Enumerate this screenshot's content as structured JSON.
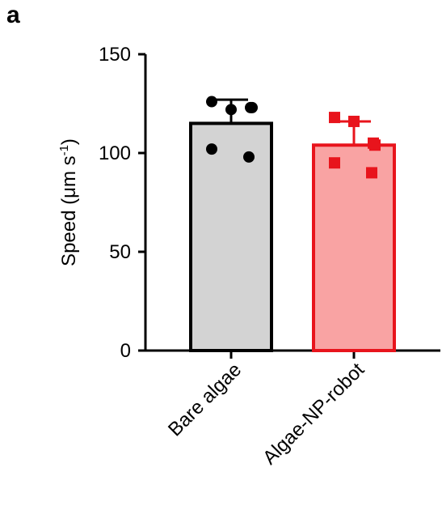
{
  "panel_label": "a",
  "chart_data": {
    "type": "bar",
    "categories": [
      "Bare algae",
      "Algae-NP-robot"
    ],
    "ylabel": "Speed (μm s-1)",
    "ylabel_main": "Speed (μm s",
    "ylabel_sup": "-1",
    "ylabel_close": ")",
    "ylim": [
      0,
      150
    ],
    "yticks": [
      0,
      50,
      100,
      150
    ],
    "bars": [
      {
        "category": "Bare algae",
        "mean": 115,
        "error": 12,
        "fill": "#d3d3d3",
        "stroke": "#000000",
        "marker": "circle",
        "points": [
          126,
          123,
          122,
          123,
          102,
          98
        ]
      },
      {
        "category": "Algae-NP-robot",
        "mean": 104,
        "error": 12,
        "fill": "#f9a3a3",
        "stroke": "#e8141c",
        "marker": "square",
        "points": [
          118,
          105,
          116,
          104,
          95,
          90
        ]
      }
    ],
    "grid": false,
    "legend": "none"
  }
}
